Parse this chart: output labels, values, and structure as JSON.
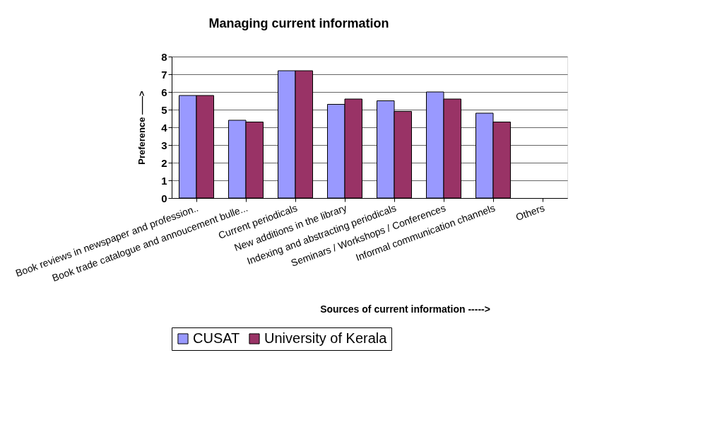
{
  "chart_data": {
    "type": "bar",
    "title": "Managing current information",
    "xlabel": "Sources of current information ----->",
    "ylabel": "Preference ——>",
    "categories": [
      "Book reviews in newspaper and profession..",
      "Book trade catalogue and annoucement bulle...",
      "Current periodicals",
      "New additions in the library",
      "Indexing and abstracting periodicals",
      "Seminars / Workshops / Conferences",
      "Informal communication channels",
      "Others"
    ],
    "series": [
      {
        "name": "CUSAT",
        "color": "#9999ff",
        "values": [
          5.8,
          4.4,
          7.2,
          5.3,
          5.5,
          6.0,
          4.8,
          null
        ]
      },
      {
        "name": "University of Kerala",
        "color": "#993366",
        "values": [
          5.8,
          4.3,
          7.2,
          5.6,
          4.9,
          5.6,
          4.3,
          null
        ]
      }
    ],
    "ylim": [
      0,
      8
    ],
    "yticks": [
      0,
      1,
      2,
      3,
      4,
      5,
      6,
      7,
      8
    ],
    "grid": "y",
    "legend": "bottom"
  }
}
